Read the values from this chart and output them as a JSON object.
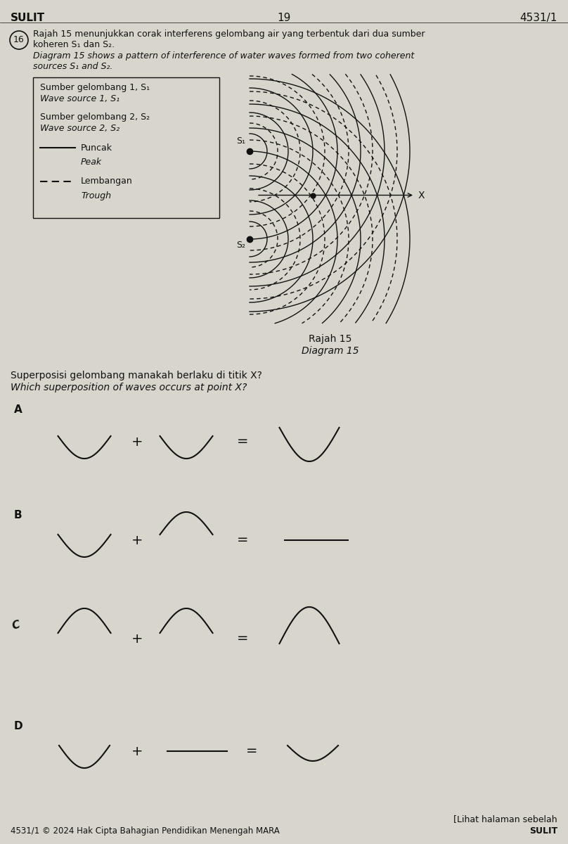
{
  "bg_color": "#d8d5cc",
  "header_left": "SULIT",
  "header_center": "19",
  "header_right": "4531/1",
  "question_number": "16",
  "question_text_bm": "Rajah 15 menunjukkan corak interferens gelombang air yang terbentuk dari dua sumber\nkoheren S₁ dan S₂.",
  "question_text_en": "Diagram 15 shows a pattern of interference of water waves formed from two coherent\nsources S₁ and S₂.",
  "legend_line1_bm": "Sumber gelombang 1, S₁",
  "legend_line1_en": "Wave source 1, S₁",
  "legend_line2_bm": "Sumber gelombang 2, S₂",
  "legend_line2_en": "Wave source 2, S₂",
  "legend_solid": "Puncak",
  "legend_solid_en": "Peak",
  "legend_dash": "Lembangan",
  "legend_dash_en": "Trough",
  "diagram_caption_bm": "Rajah 15",
  "diagram_caption_en": "Diagram 15",
  "question2_bm": "Superposisi gelombang manakah berlaku di titik X?",
  "question2_en": "Which superposition of waves occurs at point X?",
  "footer_left": "4531/1 © 2024 Hak Cipta Bahagian Pendidikan Menengah MARA",
  "footer_right_top": "[Lihat halaman sebelah",
  "footer_right_bot": "SULIT",
  "text_color": "#111111"
}
